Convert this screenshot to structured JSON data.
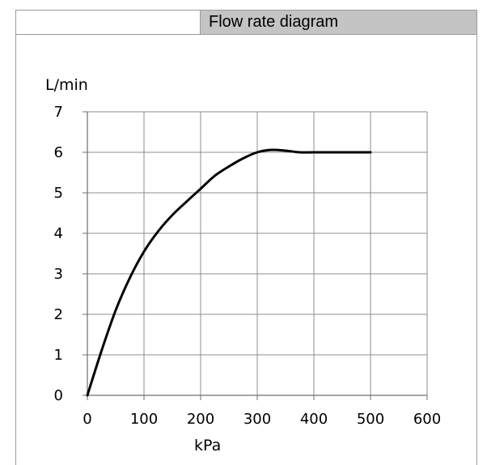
{
  "header": {
    "title": "Flow rate diagram"
  },
  "chart_data": {
    "type": "line",
    "title": "Flow rate diagram",
    "xlabel": "kPa",
    "ylabel": "L/min",
    "xlim": [
      0,
      600
    ],
    "ylim": [
      0,
      7
    ],
    "xticks": [
      "0",
      "100",
      "200",
      "300",
      "400",
      "500",
      "600"
    ],
    "yticks": [
      "0",
      "1",
      "2",
      "3",
      "4",
      "5",
      "6",
      "7"
    ],
    "grid": true,
    "legend": "none",
    "series": [
      {
        "color": "#000000",
        "x": [
          0,
          25,
          50,
          75,
          100,
          125,
          150,
          175,
          200,
          225,
          250,
          275,
          300,
          325,
          350,
          375,
          400,
          450,
          500
        ],
        "y": [
          0,
          1.1,
          2.1,
          2.9,
          3.55,
          4.05,
          4.45,
          4.78,
          5.1,
          5.42,
          5.65,
          5.85,
          6.0,
          6.06,
          6.04,
          6.0,
          6.0,
          6.0,
          6.0
        ]
      }
    ]
  }
}
